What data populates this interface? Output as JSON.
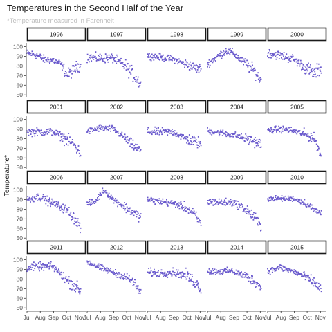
{
  "chart_data": {
    "type": "scatter",
    "title": "Temperatures in the Second Half of the Year",
    "subtitle": "*Temperature measured in Farenheit",
    "xlabel": "",
    "ylabel": "Temperature*",
    "ylim": [
      48,
      104
    ],
    "xlim": [
      "07-01",
      "11-15"
    ],
    "y_ticks": [
      50,
      60,
      70,
      80,
      90,
      100
    ],
    "x_ticks": [
      {
        "date": "07-01",
        "label": "Jul"
      },
      {
        "date": "08-01",
        "label": "Aug"
      },
      {
        "date": "09-01",
        "label": "Sep"
      },
      {
        "date": "10-01",
        "label": "Oct"
      },
      {
        "date": "11-01",
        "label": "Nov"
      }
    ],
    "point_color": "#6a5acd",
    "grid": false,
    "facet_layout": {
      "ncol": 5,
      "nrow": 4
    },
    "panels": [
      {
        "year": "1996",
        "trend": [
          [
            1,
            93
          ],
          [
            20,
            92
          ],
          [
            40,
            87
          ],
          [
            62,
            86
          ],
          [
            80,
            82
          ],
          [
            95,
            70
          ],
          [
            120,
            80
          ]
        ],
        "noise": 6
      },
      {
        "year": "1997",
        "trend": [
          [
            1,
            89
          ],
          [
            30,
            88
          ],
          [
            62,
            88
          ],
          [
            90,
            80
          ],
          [
            110,
            70
          ],
          [
            125,
            62
          ]
        ],
        "noise": 7
      },
      {
        "year": "1998",
        "trend": [
          [
            1,
            91
          ],
          [
            30,
            89
          ],
          [
            62,
            87
          ],
          [
            90,
            82
          ],
          [
            120,
            77
          ]
        ],
        "noise": 5
      },
      {
        "year": "1999",
        "trend": [
          [
            1,
            82
          ],
          [
            25,
            90
          ],
          [
            45,
            96
          ],
          [
            62,
            93
          ],
          [
            90,
            82
          ],
          [
            110,
            75
          ],
          [
            125,
            65
          ]
        ],
        "noise": 6
      },
      {
        "year": "2000",
        "trend": [
          [
            1,
            94
          ],
          [
            30,
            91
          ],
          [
            62,
            87
          ],
          [
            90,
            78
          ],
          [
            110,
            72
          ],
          [
            125,
            78
          ]
        ],
        "noise": 7
      },
      {
        "year": "2001",
        "trend": [
          [
            1,
            87
          ],
          [
            30,
            87
          ],
          [
            62,
            87
          ],
          [
            90,
            80
          ],
          [
            110,
            74
          ],
          [
            125,
            65
          ]
        ],
        "noise": 6
      },
      {
        "year": "2002",
        "trend": [
          [
            1,
            87
          ],
          [
            30,
            91
          ],
          [
            62,
            90
          ],
          [
            90,
            80
          ],
          [
            110,
            72
          ],
          [
            125,
            68
          ]
        ],
        "noise": 5
      },
      {
        "year": "2003",
        "trend": [
          [
            1,
            87
          ],
          [
            30,
            87
          ],
          [
            62,
            87
          ],
          [
            90,
            80
          ],
          [
            125,
            75
          ]
        ],
        "noise": 6
      },
      {
        "year": "2004",
        "trend": [
          [
            1,
            88
          ],
          [
            30,
            86
          ],
          [
            62,
            84
          ],
          [
            90,
            80
          ],
          [
            125,
            75
          ]
        ],
        "noise": 5
      },
      {
        "year": "2005",
        "trend": [
          [
            1,
            88
          ],
          [
            30,
            90
          ],
          [
            62,
            88
          ],
          [
            90,
            84
          ],
          [
            110,
            80
          ],
          [
            125,
            63
          ]
        ],
        "noise": 5
      },
      {
        "year": "2006",
        "trend": [
          [
            1,
            90
          ],
          [
            30,
            93
          ],
          [
            62,
            86
          ],
          [
            90,
            80
          ],
          [
            110,
            72
          ],
          [
            125,
            62
          ]
        ],
        "noise": 6
      },
      {
        "year": "2007",
        "trend": [
          [
            1,
            85
          ],
          [
            20,
            88
          ],
          [
            40,
            100
          ],
          [
            62,
            90
          ],
          [
            90,
            82
          ],
          [
            125,
            72
          ]
        ],
        "noise": 5
      },
      {
        "year": "2008",
        "trend": [
          [
            1,
            90
          ],
          [
            30,
            88
          ],
          [
            62,
            86
          ],
          [
            90,
            82
          ],
          [
            110,
            75
          ],
          [
            125,
            65
          ]
        ],
        "noise": 5
      },
      {
        "year": "2009",
        "trend": [
          [
            1,
            88
          ],
          [
            30,
            87
          ],
          [
            62,
            87
          ],
          [
            90,
            80
          ],
          [
            110,
            72
          ],
          [
            125,
            62
          ]
        ],
        "noise": 6
      },
      {
        "year": "2010",
        "trend": [
          [
            1,
            91
          ],
          [
            30,
            91
          ],
          [
            62,
            91
          ],
          [
            90,
            86
          ],
          [
            110,
            79
          ],
          [
            125,
            76
          ]
        ],
        "noise": 4
      },
      {
        "year": "2011",
        "trend": [
          [
            1,
            92
          ],
          [
            30,
            93
          ],
          [
            62,
            93
          ],
          [
            90,
            80
          ],
          [
            110,
            74
          ],
          [
            125,
            68
          ]
        ],
        "noise": 6
      },
      {
        "year": "2012",
        "trend": [
          [
            1,
            98
          ],
          [
            30,
            92
          ],
          [
            62,
            87
          ],
          [
            90,
            82
          ],
          [
            110,
            77
          ],
          [
            125,
            66
          ]
        ],
        "noise": 5
      },
      {
        "year": "2013",
        "trend": [
          [
            1,
            87
          ],
          [
            30,
            86
          ],
          [
            62,
            87
          ],
          [
            90,
            84
          ],
          [
            110,
            78
          ],
          [
            125,
            70
          ]
        ],
        "noise": 6
      },
      {
        "year": "2014",
        "trend": [
          [
            1,
            88
          ],
          [
            30,
            88
          ],
          [
            62,
            88
          ],
          [
            90,
            83
          ],
          [
            110,
            78
          ],
          [
            125,
            72
          ]
        ],
        "noise": 5
      },
      {
        "year": "2015",
        "trend": [
          [
            1,
            88
          ],
          [
            30,
            92
          ],
          [
            62,
            88
          ],
          [
            90,
            82
          ],
          [
            110,
            76
          ],
          [
            125,
            70
          ]
        ],
        "noise": 5
      }
    ]
  }
}
